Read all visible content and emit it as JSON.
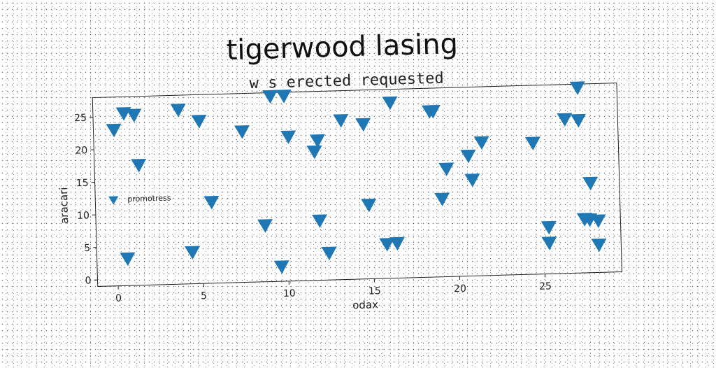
{
  "chart_data": {
    "type": "scatter",
    "title": "tigerwood lasing",
    "subtitle": "w s erected requested",
    "xlabel": "odax",
    "ylabel": "aracari",
    "xlim": [
      -1.2,
      29.5
    ],
    "ylim": [
      -1,
      28
    ],
    "xticks": [
      0,
      5,
      10,
      15,
      20,
      25
    ],
    "yticks": [
      0,
      5,
      10,
      15,
      20,
      25
    ],
    "marker": "triangle-down",
    "grid": false,
    "legend_position": "center-left",
    "series": [
      {
        "name": "promotress",
        "color": "#1f77b4",
        "points": [
          [
            0.0,
            23.0
          ],
          [
            0.6,
            25.5
          ],
          [
            1.2,
            25.2
          ],
          [
            1.4,
            17.5
          ],
          [
            0.6,
            3.2
          ],
          [
            3.8,
            25.8
          ],
          [
            5.0,
            24.0
          ],
          [
            4.4,
            3.9
          ],
          [
            5.6,
            11.5
          ],
          [
            7.5,
            22.2
          ],
          [
            8.7,
            7.7
          ],
          [
            9.2,
            27.5
          ],
          [
            10.0,
            27.5
          ],
          [
            10.2,
            21.2
          ],
          [
            9.6,
            1.3
          ],
          [
            11.7,
            18.8
          ],
          [
            11.9,
            20.5
          ],
          [
            11.9,
            8.2
          ],
          [
            12.4,
            3.2
          ],
          [
            13.3,
            23.5
          ],
          [
            14.6,
            22.8
          ],
          [
            14.8,
            10.4
          ],
          [
            15.8,
            4.3
          ],
          [
            16.2,
            26.0
          ],
          [
            16.4,
            4.4
          ],
          [
            18.5,
            24.5
          ],
          [
            18.7,
            24.5
          ],
          [
            19.1,
            11.0
          ],
          [
            19.4,
            15.6
          ],
          [
            20.7,
            17.5
          ],
          [
            20.9,
            13.8
          ],
          [
            21.5,
            19.5
          ],
          [
            24.5,
            19.2
          ],
          [
            25.3,
            6.2
          ],
          [
            25.3,
            3.8
          ],
          [
            26.4,
            22.7
          ],
          [
            27.2,
            27.5
          ],
          [
            27.2,
            22.5
          ],
          [
            27.4,
            7.3
          ],
          [
            27.7,
            7.2
          ],
          [
            28.2,
            7.0
          ],
          [
            27.8,
            12.8
          ],
          [
            28.2,
            3.3
          ]
        ]
      }
    ]
  }
}
